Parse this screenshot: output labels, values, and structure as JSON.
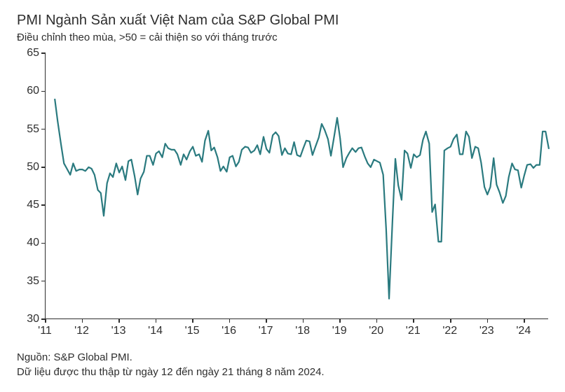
{
  "title": "PMI Ngành Sản xuất Việt Nam của S&P Global PMI",
  "subtitle": "Điều chỉnh theo mùa, >50 = cải thiện so với tháng trước",
  "source_label": "Nguồn: S&P Global PMI.",
  "note": "Dữ liệu được thu thập từ ngày 12 đến ngày 21 tháng 8 năm 2024.",
  "chart": {
    "type": "line",
    "background_color": "#ffffff",
    "axis_color": "#2e2e2e",
    "line_color": "#2a7a7f",
    "line_width": 2.2,
    "title_fontsize": 20,
    "subtitle_fontsize": 15,
    "tick_fontsize": 16,
    "ylim": [
      30,
      65
    ],
    "ytick_step": 5,
    "yticks": [
      30,
      35,
      40,
      45,
      50,
      55,
      60,
      65
    ],
    "x_start_year": 2011,
    "x_end_year": 2024.67,
    "xticks": [
      2011,
      2012,
      2013,
      2014,
      2015,
      2016,
      2017,
      2018,
      2019,
      2020,
      2021,
      2022,
      2023,
      2024
    ],
    "xtick_labels": [
      "'11",
      "'12",
      "'13",
      "'14",
      "'15",
      "'16",
      "'17",
      "'18",
      "'19",
      "'20",
      "'21",
      "'22",
      "'23",
      "'24"
    ],
    "series": [
      {
        "t": 2011.25,
        "v": 59.0
      },
      {
        "t": 2011.33,
        "v": 56.0
      },
      {
        "t": 2011.42,
        "v": 53.0
      },
      {
        "t": 2011.5,
        "v": 50.5
      },
      {
        "t": 2011.58,
        "v": 49.8
      },
      {
        "t": 2011.67,
        "v": 49.0
      },
      {
        "t": 2011.75,
        "v": 50.5
      },
      {
        "t": 2011.83,
        "v": 49.5
      },
      {
        "t": 2011.92,
        "v": 49.7
      },
      {
        "t": 2012.0,
        "v": 49.7
      },
      {
        "t": 2012.08,
        "v": 49.5
      },
      {
        "t": 2012.17,
        "v": 50.0
      },
      {
        "t": 2012.25,
        "v": 49.8
      },
      {
        "t": 2012.33,
        "v": 49.0
      },
      {
        "t": 2012.42,
        "v": 47.0
      },
      {
        "t": 2012.5,
        "v": 46.6
      },
      {
        "t": 2012.58,
        "v": 43.6
      },
      {
        "t": 2012.67,
        "v": 47.9
      },
      {
        "t": 2012.75,
        "v": 49.2
      },
      {
        "t": 2012.83,
        "v": 48.7
      },
      {
        "t": 2012.92,
        "v": 50.5
      },
      {
        "t": 2013.0,
        "v": 49.3
      },
      {
        "t": 2013.08,
        "v": 50.1
      },
      {
        "t": 2013.17,
        "v": 48.3
      },
      {
        "t": 2013.25,
        "v": 50.8
      },
      {
        "t": 2013.33,
        "v": 51.0
      },
      {
        "t": 2013.42,
        "v": 48.8
      },
      {
        "t": 2013.5,
        "v": 46.4
      },
      {
        "t": 2013.58,
        "v": 48.5
      },
      {
        "t": 2013.67,
        "v": 49.4
      },
      {
        "t": 2013.75,
        "v": 51.5
      },
      {
        "t": 2013.83,
        "v": 51.5
      },
      {
        "t": 2013.92,
        "v": 50.3
      },
      {
        "t": 2014.0,
        "v": 51.8
      },
      {
        "t": 2014.08,
        "v": 52.1
      },
      {
        "t": 2014.17,
        "v": 51.3
      },
      {
        "t": 2014.25,
        "v": 53.1
      },
      {
        "t": 2014.33,
        "v": 52.5
      },
      {
        "t": 2014.42,
        "v": 52.3
      },
      {
        "t": 2014.5,
        "v": 52.3
      },
      {
        "t": 2014.58,
        "v": 51.7
      },
      {
        "t": 2014.67,
        "v": 50.3
      },
      {
        "t": 2014.75,
        "v": 51.7
      },
      {
        "t": 2014.83,
        "v": 51.0
      },
      {
        "t": 2014.92,
        "v": 52.1
      },
      {
        "t": 2015.0,
        "v": 52.7
      },
      {
        "t": 2015.08,
        "v": 51.5
      },
      {
        "t": 2015.17,
        "v": 51.7
      },
      {
        "t": 2015.25,
        "v": 50.7
      },
      {
        "t": 2015.33,
        "v": 53.5
      },
      {
        "t": 2015.42,
        "v": 54.8
      },
      {
        "t": 2015.5,
        "v": 52.2
      },
      {
        "t": 2015.58,
        "v": 52.6
      },
      {
        "t": 2015.67,
        "v": 51.3
      },
      {
        "t": 2015.75,
        "v": 49.5
      },
      {
        "t": 2015.83,
        "v": 50.1
      },
      {
        "t": 2015.92,
        "v": 49.4
      },
      {
        "t": 2016.0,
        "v": 51.3
      },
      {
        "t": 2016.08,
        "v": 51.5
      },
      {
        "t": 2016.17,
        "v": 50.1
      },
      {
        "t": 2016.25,
        "v": 50.7
      },
      {
        "t": 2016.33,
        "v": 52.3
      },
      {
        "t": 2016.42,
        "v": 52.7
      },
      {
        "t": 2016.5,
        "v": 52.6
      },
      {
        "t": 2016.58,
        "v": 51.9
      },
      {
        "t": 2016.67,
        "v": 52.2
      },
      {
        "t": 2016.75,
        "v": 52.9
      },
      {
        "t": 2016.83,
        "v": 51.7
      },
      {
        "t": 2016.92,
        "v": 54.0
      },
      {
        "t": 2017.0,
        "v": 52.4
      },
      {
        "t": 2017.08,
        "v": 51.9
      },
      {
        "t": 2017.17,
        "v": 54.2
      },
      {
        "t": 2017.25,
        "v": 54.6
      },
      {
        "t": 2017.33,
        "v": 54.1
      },
      {
        "t": 2017.42,
        "v": 51.6
      },
      {
        "t": 2017.5,
        "v": 52.5
      },
      {
        "t": 2017.58,
        "v": 51.8
      },
      {
        "t": 2017.67,
        "v": 51.7
      },
      {
        "t": 2017.75,
        "v": 53.3
      },
      {
        "t": 2017.83,
        "v": 51.6
      },
      {
        "t": 2017.92,
        "v": 51.4
      },
      {
        "t": 2018.0,
        "v": 52.5
      },
      {
        "t": 2018.08,
        "v": 53.5
      },
      {
        "t": 2018.17,
        "v": 53.4
      },
      {
        "t": 2018.25,
        "v": 51.6
      },
      {
        "t": 2018.33,
        "v": 52.7
      },
      {
        "t": 2018.42,
        "v": 53.9
      },
      {
        "t": 2018.5,
        "v": 55.7
      },
      {
        "t": 2018.58,
        "v": 54.9
      },
      {
        "t": 2018.67,
        "v": 53.7
      },
      {
        "t": 2018.75,
        "v": 51.5
      },
      {
        "t": 2018.83,
        "v": 53.8
      },
      {
        "t": 2018.92,
        "v": 56.5
      },
      {
        "t": 2019.0,
        "v": 53.8
      },
      {
        "t": 2019.08,
        "v": 50.0
      },
      {
        "t": 2019.17,
        "v": 51.2
      },
      {
        "t": 2019.25,
        "v": 51.9
      },
      {
        "t": 2019.33,
        "v": 52.5
      },
      {
        "t": 2019.42,
        "v": 52.0
      },
      {
        "t": 2019.5,
        "v": 52.5
      },
      {
        "t": 2019.58,
        "v": 52.6
      },
      {
        "t": 2019.67,
        "v": 51.4
      },
      {
        "t": 2019.75,
        "v": 50.5
      },
      {
        "t": 2019.83,
        "v": 50.0
      },
      {
        "t": 2019.92,
        "v": 51.0
      },
      {
        "t": 2020.0,
        "v": 50.8
      },
      {
        "t": 2020.08,
        "v": 50.6
      },
      {
        "t": 2020.17,
        "v": 49.0
      },
      {
        "t": 2020.25,
        "v": 41.9
      },
      {
        "t": 2020.33,
        "v": 32.7
      },
      {
        "t": 2020.42,
        "v": 42.7
      },
      {
        "t": 2020.5,
        "v": 51.1
      },
      {
        "t": 2020.58,
        "v": 47.6
      },
      {
        "t": 2020.67,
        "v": 45.7
      },
      {
        "t": 2020.75,
        "v": 52.2
      },
      {
        "t": 2020.83,
        "v": 51.8
      },
      {
        "t": 2020.92,
        "v": 49.9
      },
      {
        "t": 2021.0,
        "v": 51.7
      },
      {
        "t": 2021.08,
        "v": 51.3
      },
      {
        "t": 2021.17,
        "v": 51.6
      },
      {
        "t": 2021.25,
        "v": 53.6
      },
      {
        "t": 2021.33,
        "v": 54.7
      },
      {
        "t": 2021.42,
        "v": 53.1
      },
      {
        "t": 2021.5,
        "v": 44.1
      },
      {
        "t": 2021.58,
        "v": 45.1
      },
      {
        "t": 2021.67,
        "v": 40.2
      },
      {
        "t": 2021.75,
        "v": 40.2
      },
      {
        "t": 2021.83,
        "v": 52.2
      },
      {
        "t": 2021.92,
        "v": 52.5
      },
      {
        "t": 2022.0,
        "v": 52.7
      },
      {
        "t": 2022.08,
        "v": 53.7
      },
      {
        "t": 2022.17,
        "v": 54.3
      },
      {
        "t": 2022.25,
        "v": 51.7
      },
      {
        "t": 2022.33,
        "v": 51.7
      },
      {
        "t": 2022.42,
        "v": 54.7
      },
      {
        "t": 2022.5,
        "v": 54.0
      },
      {
        "t": 2022.58,
        "v": 51.2
      },
      {
        "t": 2022.67,
        "v": 52.7
      },
      {
        "t": 2022.75,
        "v": 52.5
      },
      {
        "t": 2022.83,
        "v": 50.6
      },
      {
        "t": 2022.92,
        "v": 47.4
      },
      {
        "t": 2023.0,
        "v": 46.4
      },
      {
        "t": 2023.08,
        "v": 47.4
      },
      {
        "t": 2023.17,
        "v": 51.2
      },
      {
        "t": 2023.25,
        "v": 47.7
      },
      {
        "t": 2023.33,
        "v": 46.7
      },
      {
        "t": 2023.42,
        "v": 45.3
      },
      {
        "t": 2023.5,
        "v": 46.2
      },
      {
        "t": 2023.58,
        "v": 48.7
      },
      {
        "t": 2023.67,
        "v": 50.5
      },
      {
        "t": 2023.75,
        "v": 49.7
      },
      {
        "t": 2023.83,
        "v": 49.6
      },
      {
        "t": 2023.92,
        "v": 47.3
      },
      {
        "t": 2024.0,
        "v": 48.9
      },
      {
        "t": 2024.08,
        "v": 50.3
      },
      {
        "t": 2024.17,
        "v": 50.4
      },
      {
        "t": 2024.25,
        "v": 49.9
      },
      {
        "t": 2024.33,
        "v": 50.3
      },
      {
        "t": 2024.42,
        "v": 50.3
      },
      {
        "t": 2024.5,
        "v": 54.7
      },
      {
        "t": 2024.58,
        "v": 54.7
      },
      {
        "t": 2024.67,
        "v": 52.4
      }
    ]
  }
}
